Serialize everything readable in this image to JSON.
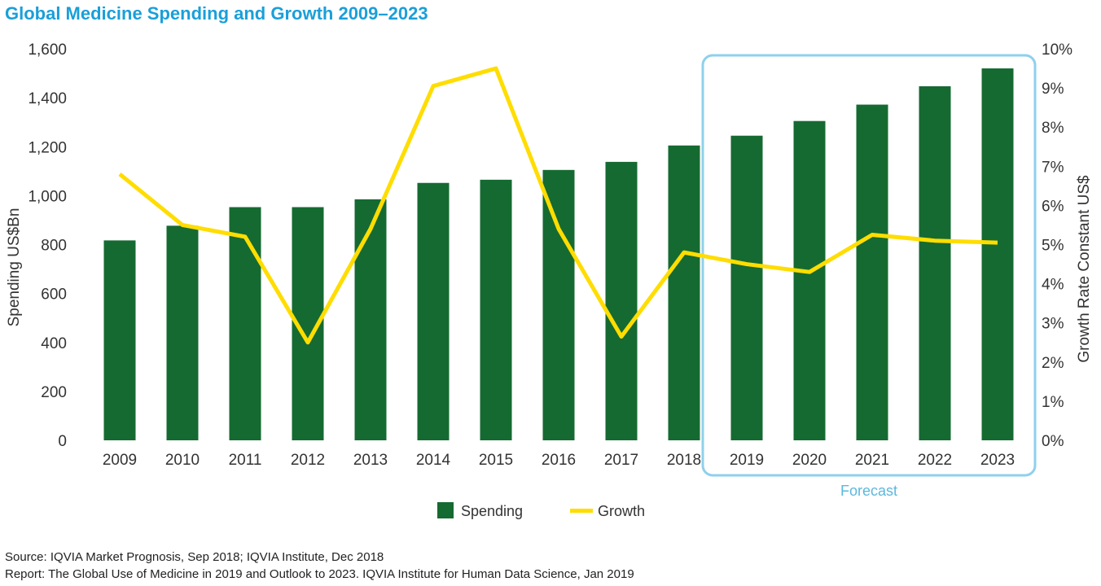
{
  "title": "Global Medicine Spending and Growth 2009–2023",
  "chart_data": {
    "type": "bar",
    "categories": [
      "2009",
      "2010",
      "2011",
      "2012",
      "2013",
      "2014",
      "2015",
      "2016",
      "2017",
      "2018",
      "2019",
      "2020",
      "2021",
      "2022",
      "2023"
    ],
    "series": [
      {
        "name": "Spending",
        "type": "bar",
        "axis": "left",
        "values": [
          817,
          877,
          953,
          953,
          985,
          1052,
          1065,
          1105,
          1138,
          1205,
          1245,
          1305,
          1372,
          1447,
          1520
        ]
      },
      {
        "name": "Growth",
        "type": "line",
        "axis": "right",
        "values": [
          6.8,
          5.5,
          5.2,
          2.5,
          5.4,
          9.05,
          9.5,
          5.4,
          2.65,
          4.8,
          4.5,
          4.3,
          5.25,
          5.1,
          5.05
        ]
      }
    ],
    "ylabel": "Spending US$Bn",
    "y2label": "Growth Rate Constant US$",
    "ylim": [
      0,
      1600
    ],
    "y2lim": [
      0,
      10
    ],
    "yticks": [
      "0",
      "200",
      "400",
      "600",
      "800",
      "1,000",
      "1,200",
      "1,400",
      "1,600"
    ],
    "y2ticks": [
      "0%",
      "1%",
      "2%",
      "3%",
      "4%",
      "5%",
      "6%",
      "7%",
      "8%",
      "9%",
      "10%"
    ],
    "forecast": {
      "label": "Forecast",
      "from": "2019",
      "to": "2023"
    },
    "legend": {
      "placement": "bottom-center",
      "items": [
        "Spending",
        "Growth"
      ]
    },
    "grid": false,
    "colors": {
      "bar": "#156a31",
      "line": "#ffdd00",
      "forecast_box": "#8fd0ec",
      "title": "#1a9fd9"
    }
  },
  "source": {
    "line1": "Source: IQVIA Market Prognosis, Sep 2018; IQVIA Institute, Dec 2018",
    "line2": "Report: The Global Use of Medicine in 2019 and Outlook to 2023. IQVIA Institute for Human Data Science, Jan 2019"
  }
}
